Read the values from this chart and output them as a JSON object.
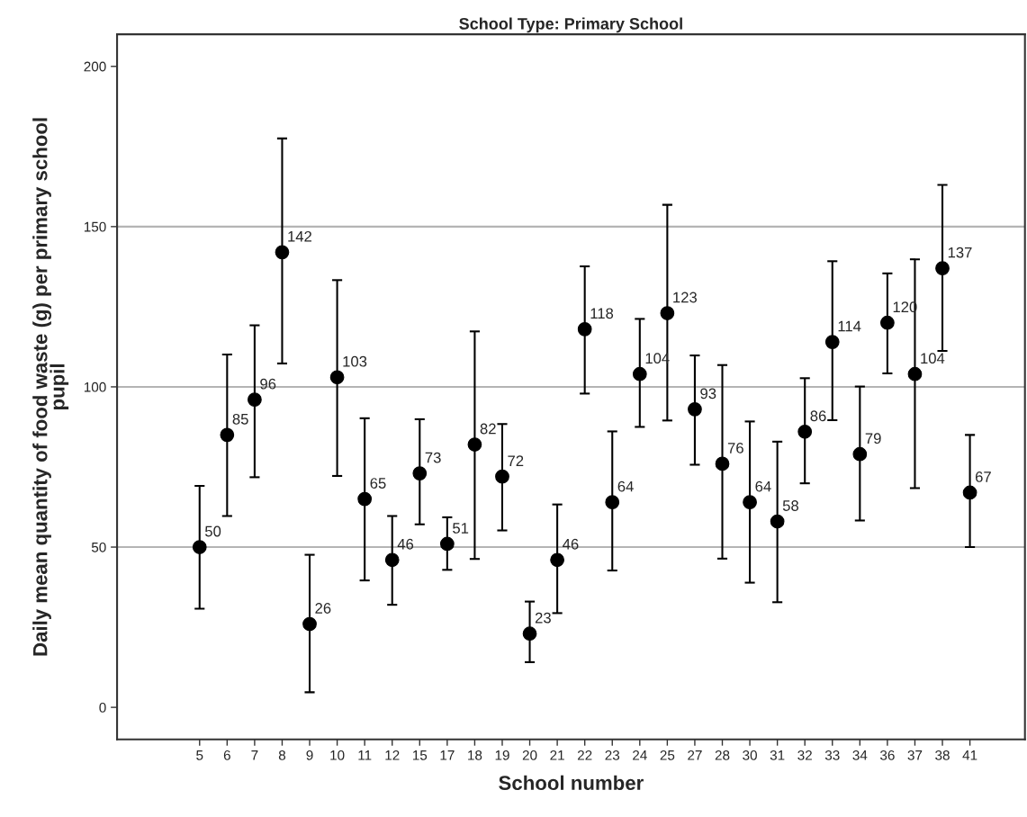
{
  "chart_data": {
    "type": "scatter",
    "title": "School Type: Primary School",
    "xlabel": "School number",
    "ylabel": "Daily mean quantity of food waste (g) per primary school\npupil",
    "categories": [
      "5",
      "6",
      "7",
      "8",
      "9",
      "10",
      "11",
      "12",
      "15",
      "17",
      "18",
      "19",
      "20",
      "21",
      "22",
      "23",
      "24",
      "25",
      "27",
      "28",
      "30",
      "31",
      "32",
      "33",
      "34",
      "36",
      "37",
      "38",
      "41"
    ],
    "values": [
      50,
      85,
      96,
      142,
      26,
      103,
      65,
      46,
      73,
      51,
      82,
      72,
      23,
      46,
      118,
      64,
      104,
      123,
      93,
      76,
      64,
      58,
      86,
      114,
      79,
      120,
      104,
      137,
      67
    ],
    "errors": [
      [
        30.8,
        69.1
      ],
      [
        59.7,
        110.1
      ],
      [
        71.8,
        119.2
      ],
      [
        107.3,
        177.5
      ],
      [
        4.7,
        47.6
      ],
      [
        72.2,
        133.3
      ],
      [
        39.6,
        90.2
      ],
      [
        32.0,
        59.7
      ],
      [
        57.1,
        89.9
      ],
      [
        42.9,
        59.3
      ],
      [
        46.3,
        117.3
      ],
      [
        55.2,
        88.4
      ],
      [
        14.1,
        33.0
      ],
      [
        29.4,
        63.3
      ],
      [
        97.9,
        137.6
      ],
      [
        42.7,
        86.1
      ],
      [
        87.5,
        121.2
      ],
      [
        89.5,
        156.8
      ],
      [
        75.7,
        109.8
      ],
      [
        46.4,
        106.8
      ],
      [
        38.9,
        89.2
      ],
      [
        32.8,
        82.9
      ],
      [
        69.9,
        102.7
      ],
      [
        89.6,
        139.2
      ],
      [
        58.3,
        100.1
      ],
      [
        104.2,
        135.4
      ],
      [
        68.4,
        139.8
      ],
      [
        111.2,
        163.0
      ],
      [
        50.0,
        85.0
      ]
    ],
    "color": "#000000",
    "marker": "circle",
    "data_labels": true,
    "ylim": [
      -10,
      210
    ],
    "yticks": [
      0,
      50,
      100,
      150,
      200
    ],
    "ref_lines": [
      {
        "axis": "y",
        "value": 50,
        "color": "#b4b4b4"
      },
      {
        "axis": "y",
        "value": 100,
        "color": "#b4b4b4"
      },
      {
        "axis": "y",
        "value": 150,
        "color": "#b4b4b4"
      }
    ],
    "grid": false,
    "legend": false
  }
}
